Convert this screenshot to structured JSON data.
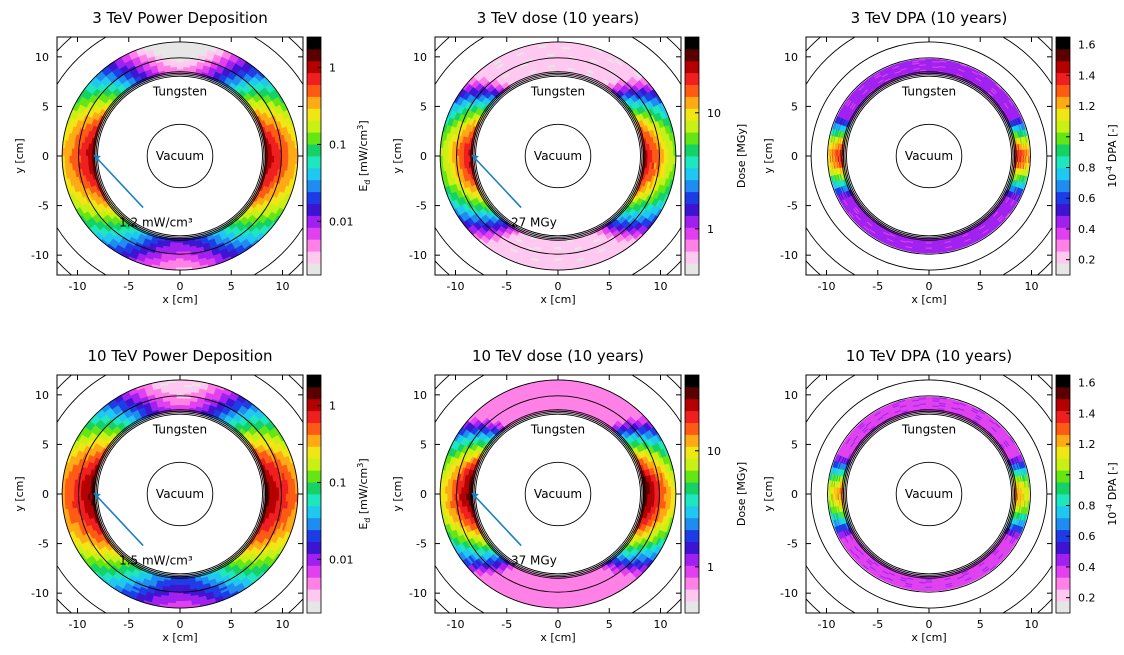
{
  "colors": {
    "palette": [
      "#e6e6e6",
      "#ffc8f0",
      "#ff80e6",
      "#e040f0",
      "#a020f0",
      "#3c14d2",
      "#1e3ce6",
      "#1e8cf0",
      "#1ec8f0",
      "#1ee6be",
      "#14d264",
      "#64e614",
      "#c8f014",
      "#f0e614",
      "#ffaa14",
      "#ff5a14",
      "#f01e1e",
      "#b40000",
      "#5a0000",
      "#000000"
    ],
    "annotation": "#1a7fc1",
    "outline": "#000000"
  },
  "chart_data": [
    {
      "type": "heatmap",
      "title": "3 TeV Power Deposition",
      "xlabel": "x [cm]",
      "ylabel": "y [cm]",
      "xlim": [
        -12,
        12
      ],
      "ylim": [
        -12,
        12
      ],
      "xticks": [
        "-10",
        "-5",
        "0",
        "5",
        "10"
      ],
      "yticks": [
        "10",
        "5",
        "0",
        "-5",
        "-10"
      ],
      "colorbar_label": "E_d [mW/cm^3]",
      "colorbar_ticks": [
        {
          "label": "1",
          "value": 1
        },
        {
          "label": "0.1",
          "value": 0.1
        },
        {
          "label": "0.01",
          "value": 0.01
        }
      ],
      "colorbar_scale": "log",
      "cmin": 0.002,
      "cmax": 2.5,
      "peak_value": 1.2,
      "annotation": {
        "text": "1.2 mW/cm³",
        "pointer_x": -8.4,
        "pointer_y": 0.1,
        "text_x": -4.5,
        "text_y": -6.3
      },
      "regions": [
        {
          "label": "Tungsten",
          "x": 0,
          "y": 6.5
        },
        {
          "label": "Vacuum",
          "x": 0,
          "y": 0
        }
      ],
      "field": {
        "r_in": 8.3,
        "r_out": 11.5,
        "n_side": 2.0,
        "n_top": 2.4,
        "n_bottom": 1.9,
        "radial_decay": 0.45,
        "min_rel": 0.002
      }
    },
    {
      "type": "heatmap",
      "title": "3 TeV dose (10 years)",
      "xlabel": "x [cm]",
      "ylabel": "y [cm]",
      "xlim": [
        -12,
        12
      ],
      "ylim": [
        -12,
        12
      ],
      "xticks": [
        "-10",
        "-5",
        "0",
        "5",
        "10"
      ],
      "yticks": [
        "10",
        "5",
        "0",
        "-5",
        "-10"
      ],
      "colorbar_label": "Dose [MGy]",
      "colorbar_ticks": [
        {
          "label": "10",
          "value": 10
        },
        {
          "label": "1",
          "value": 1
        }
      ],
      "colorbar_scale": "log",
      "cmin": 0.4,
      "cmax": 45,
      "peak_value": 27,
      "annotation": {
        "text": "27 MGy",
        "pointer_x": -8.4,
        "pointer_y": 0.1,
        "text_x": -4.5,
        "text_y": -6.3
      },
      "regions": [
        {
          "label": "Tungsten",
          "x": 0,
          "y": 6.5
        },
        {
          "label": "Vacuum",
          "x": 0,
          "y": 0
        }
      ],
      "field": {
        "r_in": 8.3,
        "r_out": 11.5,
        "n_side": 2.0,
        "n_top": 2.6,
        "n_bottom": 2.1,
        "radial_decay": 0.45,
        "min_rel": 0.02
      }
    },
    {
      "type": "heatmap",
      "title": "3 TeV DPA (10 years)",
      "xlabel": "x [cm]",
      "ylabel": "y [cm]",
      "xlim": [
        -12,
        12
      ],
      "ylim": [
        -12,
        12
      ],
      "xticks": [
        "-10",
        "-5",
        "0",
        "5",
        "10"
      ],
      "yticks": [
        "10",
        "5",
        "0",
        "-5",
        "-10"
      ],
      "colorbar_label": "10^-4 DPA [-]",
      "colorbar_ticks": [
        {
          "label": "1.6",
          "value": 1.6
        },
        {
          "label": "1.4",
          "value": 1.4
        },
        {
          "label": "1.2",
          "value": 1.2
        },
        {
          "label": "1",
          "value": 1.0
        },
        {
          "label": "0.8",
          "value": 0.8
        },
        {
          "label": "0.6",
          "value": 0.6
        },
        {
          "label": "0.4",
          "value": 0.4
        },
        {
          "label": "0.2",
          "value": 0.2
        }
      ],
      "colorbar_scale": "linear",
      "cmin": 0.1,
      "cmax": 1.65,
      "peak_value": 1.45,
      "regions": [
        {
          "label": "Tungsten",
          "x": 0,
          "y": 6.5
        },
        {
          "label": "Vacuum",
          "x": 0,
          "y": 0
        }
      ],
      "field": {
        "r_in": 8.3,
        "r_out": 9.8,
        "n_side": 1.5,
        "n_top": 3.2,
        "n_bottom": 2.7,
        "radial_decay": 0.12,
        "min_rel": 0.3
      }
    },
    {
      "type": "heatmap",
      "title": "10 TeV Power Deposition",
      "xlabel": "x [cm]",
      "ylabel": "y [cm]",
      "xlim": [
        -12,
        12
      ],
      "ylim": [
        -12,
        12
      ],
      "xticks": [
        "-10",
        "-5",
        "0",
        "5",
        "10"
      ],
      "yticks": [
        "10",
        "5",
        "0",
        "-5",
        "-10"
      ],
      "colorbar_label": "E_d [mW/cm^3]",
      "colorbar_ticks": [
        {
          "label": "1",
          "value": 1
        },
        {
          "label": "0.1",
          "value": 0.1
        },
        {
          "label": "0.01",
          "value": 0.01
        }
      ],
      "colorbar_scale": "log",
      "cmin": 0.002,
      "cmax": 2.5,
      "peak_value": 1.5,
      "annotation": {
        "text": "1.5 mW/cm³",
        "pointer_x": -8.4,
        "pointer_y": 0.1,
        "text_x": -4.5,
        "text_y": -6.3
      },
      "regions": [
        {
          "label": "Tungsten",
          "x": 0,
          "y": 6.5
        },
        {
          "label": "Vacuum",
          "x": 0,
          "y": 0
        }
      ],
      "field": {
        "r_in": 8.3,
        "r_out": 11.5,
        "n_side": 1.8,
        "n_top": 2.3,
        "n_bottom": 1.8,
        "radial_decay": 0.42,
        "min_rel": 0.002
      }
    },
    {
      "type": "heatmap",
      "title": "10 TeV dose (10 years)",
      "xlabel": "x [cm]",
      "ylabel": "y [cm]",
      "xlim": [
        -12,
        12
      ],
      "ylim": [
        -12,
        12
      ],
      "xticks": [
        "-10",
        "-5",
        "0",
        "5",
        "10"
      ],
      "yticks": [
        "10",
        "5",
        "0",
        "-5",
        "-10"
      ],
      "colorbar_label": "Dose [MGy]",
      "colorbar_ticks": [
        {
          "label": "10",
          "value": 10
        },
        {
          "label": "1",
          "value": 1
        }
      ],
      "colorbar_scale": "log",
      "cmin": 0.4,
      "cmax": 45,
      "peak_value": 37,
      "annotation": {
        "text": "37 MGy",
        "pointer_x": -8.4,
        "pointer_y": 0.1,
        "text_x": -4.5,
        "text_y": -6.3
      },
      "regions": [
        {
          "label": "Tungsten",
          "x": 0,
          "y": 6.5
        },
        {
          "label": "Vacuum",
          "x": 0,
          "y": 0
        }
      ],
      "field": {
        "r_in": 8.3,
        "r_out": 11.5,
        "n_side": 2.0,
        "n_top": 2.8,
        "n_bottom": 2.4,
        "radial_decay": 0.45,
        "min_rel": 0.02
      }
    },
    {
      "type": "heatmap",
      "title": "10 TeV DPA (10 years)",
      "xlabel": "x [cm]",
      "ylabel": "y [cm]",
      "xlim": [
        -12,
        12
      ],
      "ylim": [
        -12,
        12
      ],
      "xticks": [
        "-10",
        "-5",
        "0",
        "5",
        "10"
      ],
      "yticks": [
        "10",
        "5",
        "0",
        "-5",
        "-10"
      ],
      "colorbar_label": "10^-4 DPA [-]",
      "colorbar_ticks": [
        {
          "label": "1.6",
          "value": 1.6
        },
        {
          "label": "1.4",
          "value": 1.4
        },
        {
          "label": "1.2",
          "value": 1.2
        },
        {
          "label": "1",
          "value": 1.0
        },
        {
          "label": "0.8",
          "value": 0.8
        },
        {
          "label": "0.6",
          "value": 0.6
        },
        {
          "label": "0.4",
          "value": 0.4
        },
        {
          "label": "0.2",
          "value": 0.2
        }
      ],
      "colorbar_scale": "linear",
      "cmin": 0.1,
      "cmax": 1.65,
      "peak_value": 1.3,
      "regions": [
        {
          "label": "Tungsten",
          "x": 0,
          "y": 6.5
        },
        {
          "label": "Vacuum",
          "x": 0,
          "y": 0
        }
      ],
      "field": {
        "r_in": 8.3,
        "r_out": 9.8,
        "n_side": 1.3,
        "n_top": 3.4,
        "n_bottom": 2.5,
        "radial_decay": 0.12,
        "min_rel": 0.3
      }
    }
  ]
}
